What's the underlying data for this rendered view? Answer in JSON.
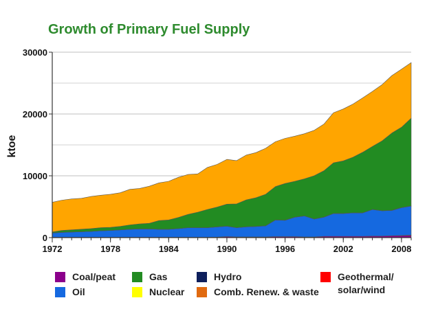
{
  "chart_data": {
    "type": "area",
    "stacked": true,
    "title": "Growth of Primary Fuel Supply",
    "ylabel": "ktoe",
    "xlabel": "",
    "ylim": [
      0,
      30000
    ],
    "yticks": [
      0,
      10000,
      20000,
      30000
    ],
    "ytick_labels": [
      "0",
      "10000",
      "20000",
      "30000"
    ],
    "xlim": [
      1972,
      2009
    ],
    "xticks": [
      1972,
      1978,
      1984,
      1990,
      1996,
      2002,
      2008
    ],
    "xtick_labels": [
      "1972",
      "1978",
      "1984",
      "1990",
      "1996",
      "2002",
      "2008"
    ],
    "grid": "horizontal",
    "legend_position": "bottom",
    "x": [
      1972,
      1973,
      1974,
      1975,
      1976,
      1977,
      1978,
      1979,
      1980,
      1981,
      1982,
      1983,
      1984,
      1985,
      1986,
      1987,
      1988,
      1989,
      1990,
      1991,
      1992,
      1993,
      1994,
      1995,
      1996,
      1997,
      1998,
      1999,
      2000,
      2001,
      2002,
      2003,
      2004,
      2005,
      2006,
      2007,
      2008,
      2009
    ],
    "series": [
      {
        "name": "Coal/peat",
        "color": "#8b008b",
        "values": [
          50,
          50,
          50,
          50,
          50,
          50,
          50,
          50,
          50,
          50,
          50,
          50,
          50,
          50,
          50,
          50,
          50,
          80,
          150,
          100,
          100,
          100,
          100,
          150,
          150,
          150,
          100,
          100,
          200,
          200,
          200,
          200,
          200,
          250,
          250,
          300,
          300,
          350
        ]
      },
      {
        "name": "Geothermal/ solar/wind",
        "color": "#ff0000",
        "values": [
          0,
          0,
          0,
          0,
          0,
          0,
          0,
          0,
          0,
          0,
          0,
          0,
          0,
          0,
          0,
          0,
          0,
          0,
          0,
          0,
          0,
          0,
          0,
          0,
          0,
          0,
          0,
          0,
          0,
          0,
          0,
          0,
          0,
          0,
          0,
          0,
          50,
          60
        ]
      },
      {
        "name": "Oil",
        "color": "#1569e0",
        "values": [
          700,
          800,
          850,
          900,
          950,
          1050,
          1100,
          1200,
          1300,
          1350,
          1350,
          1300,
          1300,
          1400,
          1550,
          1550,
          1550,
          1650,
          1700,
          1500,
          1650,
          1700,
          1800,
          2700,
          2650,
          3150,
          3400,
          2900,
          3100,
          3700,
          3700,
          3800,
          3800,
          4300,
          4100,
          4100,
          4500,
          4700
        ]
      },
      {
        "name": "Hydro",
        "color": "#0d1f5c",
        "values": [
          10,
          10,
          10,
          10,
          10,
          10,
          10,
          10,
          10,
          10,
          10,
          10,
          10,
          10,
          10,
          10,
          10,
          10,
          10,
          10,
          10,
          10,
          10,
          10,
          10,
          10,
          10,
          10,
          10,
          10,
          10,
          10,
          10,
          10,
          10,
          10,
          10,
          10
        ]
      },
      {
        "name": "Nuclear",
        "color": "#ffff00",
        "values": [
          0,
          0,
          0,
          0,
          0,
          0,
          0,
          0,
          0,
          0,
          0,
          0,
          0,
          0,
          0,
          0,
          0,
          0,
          0,
          0,
          0,
          0,
          0,
          0,
          0,
          0,
          0,
          0,
          0,
          0,
          0,
          0,
          0,
          0,
          0,
          0,
          0,
          0
        ]
      },
      {
        "name": "Gas",
        "color": "#228b22",
        "values": [
          150,
          300,
          350,
          400,
          450,
          500,
          500,
          550,
          700,
          800,
          900,
          1400,
          1500,
          1800,
          2150,
          2500,
          2950,
          3200,
          3550,
          3850,
          4350,
          4650,
          5100,
          5400,
          5950,
          5800,
          6000,
          7000,
          7500,
          8200,
          8500,
          9000,
          9800,
          10200,
          11300,
          12500,
          13000,
          14200
        ]
      },
      {
        "name": "Comb. Renew. & waste",
        "color": "#ffa500",
        "values": [
          4800,
          4900,
          5000,
          5000,
          5200,
          5250,
          5350,
          5450,
          5750,
          5750,
          6000,
          6100,
          6250,
          6500,
          6450,
          6200,
          6800,
          6900,
          7250,
          7000,
          7250,
          7300,
          7450,
          7250,
          7300,
          7300,
          7300,
          7350,
          7550,
          8100,
          8400,
          8600,
          8800,
          8900,
          9100,
          9300,
          9400,
          9000
        ]
      }
    ]
  },
  "legend": [
    {
      "label_lines": [
        "Coal/peat"
      ],
      "color": "#8b008b"
    },
    {
      "label_lines": [
        "Oil"
      ],
      "color": "#1569e0"
    },
    {
      "label_lines": [
        "Gas"
      ],
      "color": "#228b22"
    },
    {
      "label_lines": [
        "Nuclear"
      ],
      "color": "#ffff00"
    },
    {
      "label_lines": [
        "Hydro"
      ],
      "color": "#0d1f5c"
    },
    {
      "label_lines": [
        "Comb. Renew. & waste"
      ],
      "color": "#e06a10"
    },
    {
      "label_lines": [
        "Geothermal/",
        "solar/wind"
      ],
      "color": "#ff0000"
    }
  ]
}
